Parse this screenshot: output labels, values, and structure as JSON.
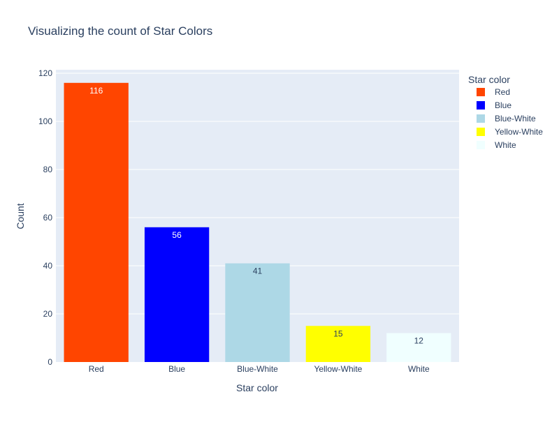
{
  "chart_data": {
    "type": "bar",
    "title": "Visualizing the count of Star Colors",
    "xlabel": "Star color",
    "ylabel": "Count",
    "ylim": [
      0,
      120
    ],
    "yticks": [
      0,
      20,
      40,
      60,
      80,
      100,
      120
    ],
    "grid": true,
    "categories": [
      "Red",
      "Blue",
      "Blue-White",
      "Yellow-White",
      "White"
    ],
    "values": [
      116,
      56,
      41,
      15,
      12
    ],
    "colors": [
      "#ff4500",
      "#0000ff",
      "#add8e6",
      "#ffff00",
      "#f0ffff"
    ],
    "label_colors": [
      "#ffffff",
      "#ffffff",
      "#2a3f5f",
      "#2a3f5f",
      "#2a3f5f"
    ],
    "legend": {
      "title": "Star color",
      "placement": "right",
      "entries": [
        "Red",
        "Blue",
        "Blue-White",
        "Yellow-White",
        "White"
      ]
    }
  }
}
